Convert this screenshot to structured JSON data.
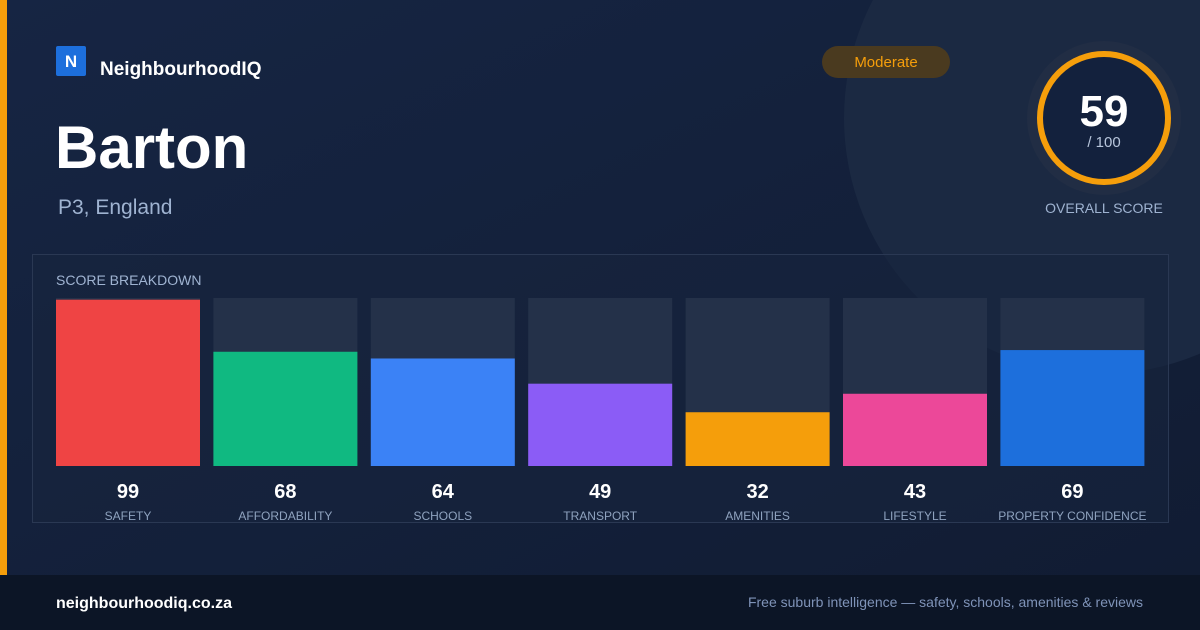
{
  "brand": {
    "logo_letter": "N",
    "name": "NeighbourhoodIQ"
  },
  "badge": "Moderate",
  "title": "Barton",
  "subtitle": "P3, England",
  "overall": {
    "score": 59,
    "max_label": "/ 100",
    "label": "OVERALL SCORE"
  },
  "chart_data": {
    "type": "bar",
    "title": "SCORE BREAKDOWN",
    "categories": [
      "SAFETY",
      "AFFORDABILITY",
      "SCHOOLS",
      "TRANSPORT",
      "AMENITIES",
      "LIFESTYLE",
      "PROPERTY CONFIDENCE"
    ],
    "values": [
      99,
      68,
      64,
      49,
      32,
      43,
      69
    ],
    "colors": [
      "#ef4444",
      "#10b981",
      "#3b82f6",
      "#8b5cf6",
      "#f59e0b",
      "#ec4899",
      "#1d6fdc"
    ],
    "ylim": [
      0,
      100
    ]
  },
  "footer": {
    "domain": "neighbourhoodiq.co.za",
    "tagline": "Free suburb intelligence — safety, schools, amenities & reviews"
  }
}
